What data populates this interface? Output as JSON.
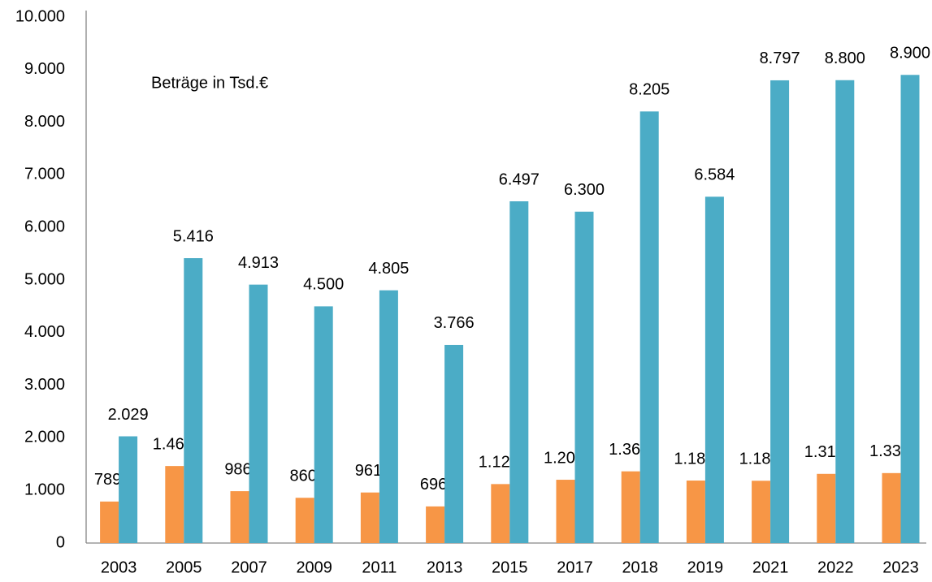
{
  "chart_data": {
    "type": "bar",
    "annotation": "Beträge in Tsd.€",
    "categories": [
      "2003",
      "2005",
      "2007",
      "2009",
      "2011",
      "2013",
      "2015",
      "2017",
      "2018",
      "2019",
      "2021",
      "2022",
      "2023"
    ],
    "series": [
      {
        "color": "#f79646",
        "values": [
          789,
          1464,
          986,
          860,
          961,
          696,
          1121,
          1203,
          1363,
          1188,
          1184,
          1315,
          1330
        ],
        "value_labels": [
          "789",
          "1.464",
          "986",
          "860",
          "961",
          "696",
          "1.121",
          "1.203",
          "1.363",
          "1.188",
          "1.184",
          "1.315",
          "1.330"
        ]
      },
      {
        "color": "#4bacc6",
        "values": [
          2029,
          5416,
          4913,
          4500,
          4805,
          3766,
          6497,
          6300,
          8205,
          6584,
          8797,
          8800,
          8900
        ],
        "value_labels": [
          "2.029",
          "5.416",
          "4.913",
          "4.500",
          "4.805",
          "3.766",
          "6.497",
          "6.300",
          "8.205",
          "6.584",
          "8.797",
          "8.800",
          "8.900"
        ]
      }
    ],
    "ylim": [
      0,
      10000
    ],
    "yticks": [
      0,
      {
        "value": 1000,
        "label": "1.000"
      },
      {
        "value": 2000,
        "label": "2.000"
      },
      {
        "value": 3000,
        "label": "3.000"
      },
      {
        "value": 4000,
        "label": "4.000"
      },
      {
        "value": 5000,
        "label": "5.000"
      },
      {
        "value": 6000,
        "label": "6.000"
      },
      {
        "value": 7000,
        "label": "7.000"
      },
      {
        "value": 8000,
        "label": "8.000"
      },
      {
        "value": 9000,
        "label": "9.000"
      },
      {
        "value": 10000,
        "label": "10.000"
      }
    ],
    "grid": false
  }
}
